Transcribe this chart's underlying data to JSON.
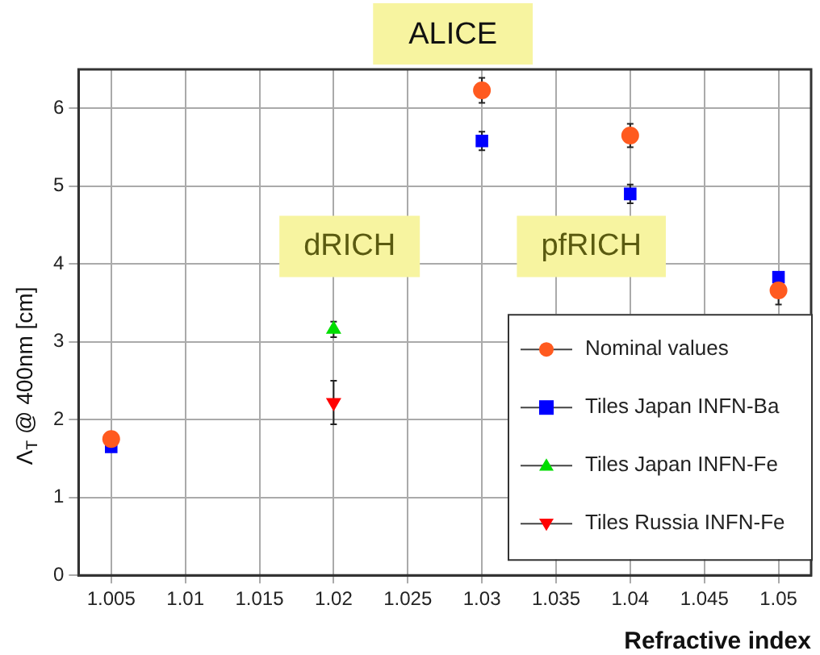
{
  "chart_data": {
    "type": "scatter",
    "title": "ALICE",
    "xlabel": "Refractive index",
    "ylabel": "Λ$_{T}$ @ 400nm [cm]",
    "xlim": [
      1.0028,
      1.0522
    ],
    "ylim": [
      0,
      6.5
    ],
    "xticks": [
      1.005,
      1.01,
      1.015,
      1.02,
      1.025,
      1.03,
      1.035,
      1.04,
      1.045,
      1.05
    ],
    "yticks": [
      0,
      1,
      2,
      3,
      4,
      5,
      6
    ],
    "grid": true,
    "legend": "bottom right",
    "annotations": [
      "dRICH",
      "pfRICH"
    ],
    "series": [
      {
        "name": "Nominal values",
        "color": "#ff5a1f",
        "marker": "circle",
        "x": [
          1.005,
          1.03,
          1.04,
          1.05
        ],
        "values": [
          1.75,
          6.23,
          5.65,
          3.66
        ],
        "errors": [
          null,
          0.16,
          0.15,
          0.18
        ]
      },
      {
        "name": "Tiles Japan INFN-Ba",
        "color": "#0000ff",
        "marker": "square",
        "x": [
          1.005,
          1.03,
          1.04,
          1.05
        ],
        "values": [
          1.65,
          5.58,
          4.9,
          3.83
        ],
        "errors": [
          null,
          0.12,
          0.12,
          null
        ]
      },
      {
        "name": "Tiles Japan INFN-Fe",
        "color": "#00dd00",
        "marker": "triangle",
        "x": [
          1.02
        ],
        "values": [
          3.16
        ],
        "errors": [
          0.1
        ]
      },
      {
        "name": "Tiles Russia INFN-Fe",
        "color": "#ff0000",
        "marker": "triangle-down",
        "x": [
          1.02
        ],
        "values": [
          2.22
        ],
        "errors": [
          0.28
        ]
      }
    ]
  }
}
